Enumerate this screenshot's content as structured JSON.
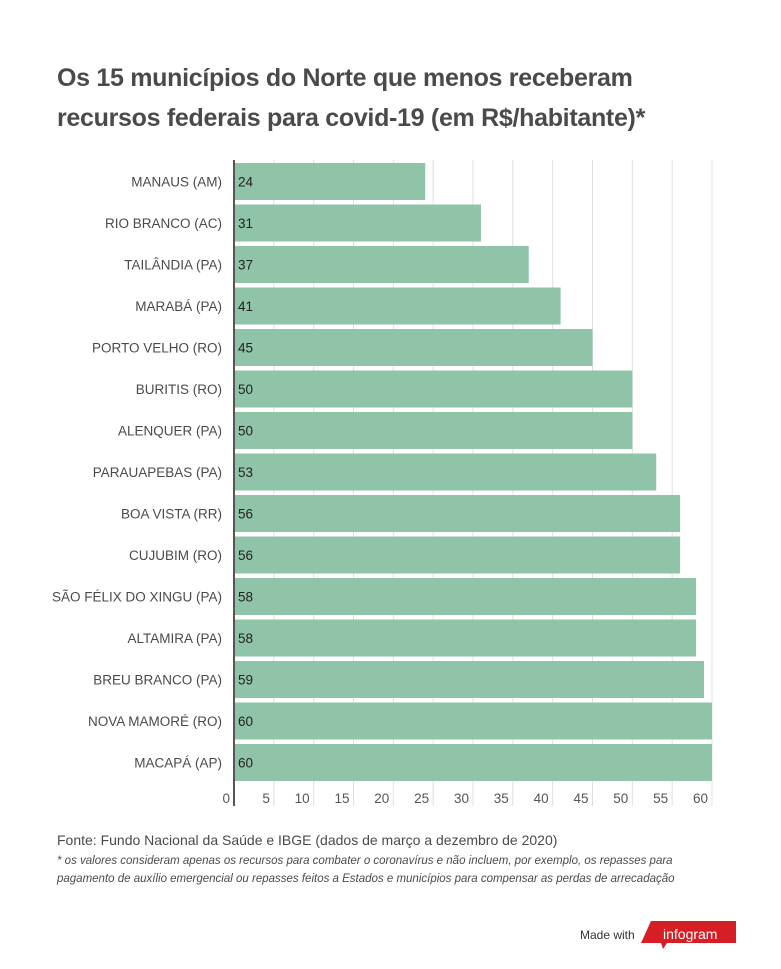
{
  "title_line1": "Os 15 municípios do Norte que menos receberam",
  "title_line2": "recursos federais para covid-19 (em R$/habitante)*",
  "source": "Fonte: Fundo Nacional da Saúde e IBGE (dados de março a dezembro de 2020)",
  "note_line1": "* os valores consideram apenas os recursos para combater o coronavírus e não incluem, por exemplo, os repasses para",
  "note_line2": "pagamento de auxílio emergencial ou repasses feitos a Estados e municípios para compensar as perdas de arrecadação",
  "footer": {
    "made_with": "Made with",
    "brand": "infogram",
    "brand_color": "#d51f24"
  },
  "colors": {
    "bar": "#8fc4a8",
    "axis": "#555555",
    "grid": "#e0e0e0"
  },
  "chart_data": {
    "type": "bar",
    "orientation": "horizontal",
    "title": "Os 15 municípios do Norte que menos receberam recursos federais para covid-19 (em R$/habitante)*",
    "xlabel": "",
    "ylabel": "",
    "categories": [
      "MANAUS (AM)",
      "RIO BRANCO (AC)",
      "TAILÂNDIA (PA)",
      "MARABÁ (PA)",
      "PORTO VELHO (RO)",
      "BURITIS (RO)",
      "ALENQUER (PA)",
      "PARAUAPEBAS (PA)",
      "BOA VISTA (RR)",
      "CUJUBIM (RO)",
      "SÃO FÉLIX DO XINGU (PA)",
      "ALTAMIRA (PA)",
      "BREU BRANCO (PA)",
      "NOVA MAMORÉ (RO)",
      "MACAPÁ (AP)"
    ],
    "values": [
      24,
      31,
      37,
      41,
      45,
      50,
      50,
      53,
      56,
      56,
      58,
      58,
      59,
      60,
      60
    ],
    "xlim": [
      0,
      60
    ],
    "xticks": [
      0,
      5,
      10,
      15,
      20,
      25,
      30,
      35,
      40,
      45,
      50,
      55,
      60
    ],
    "grid": true,
    "data_labels": true
  }
}
